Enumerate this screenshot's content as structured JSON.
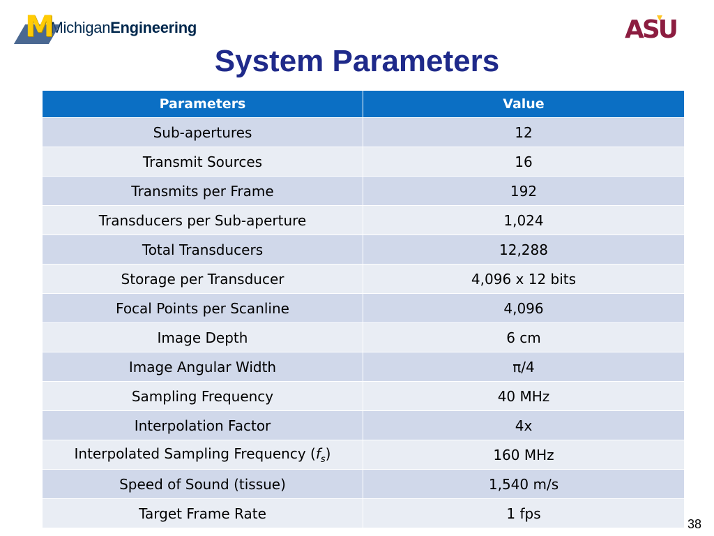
{
  "header": {
    "michigan_logo_text_regular": "Michigan",
    "michigan_logo_text_bold": "Engineering",
    "asu_logo_text": "ASU"
  },
  "slide": {
    "title": "System Parameters",
    "page_number": "38"
  },
  "table": {
    "headers": [
      "Parameters",
      "Value"
    ],
    "rows": [
      {
        "param": "Sub-apertures",
        "value": "12"
      },
      {
        "param": "Transmit Sources",
        "value": "16"
      },
      {
        "param": "Transmits per Frame",
        "value": "192"
      },
      {
        "param": "Transducers per Sub-aperture",
        "value": "1,024"
      },
      {
        "param": "Total Transducers",
        "value": "12,288"
      },
      {
        "param": "Storage per Transducer",
        "value": "4,096 x 12 bits"
      },
      {
        "param": "Focal Points per Scanline",
        "value": "4,096"
      },
      {
        "param": "Image Depth",
        "value": "6 cm"
      },
      {
        "param": "Image Angular Width",
        "value": "π/4"
      },
      {
        "param": "Sampling Frequency",
        "value": "40 MHz"
      },
      {
        "param": "Interpolation Factor",
        "value": "4x"
      },
      {
        "param": "Interpolated Sampling Frequency (",
        "param_italic": "f",
        "param_sub": "s",
        "param_end": ")",
        "value": "160 MHz"
      },
      {
        "param": "Speed of Sound (tissue)",
        "value": "1,540 m/s"
      },
      {
        "param": "Target Frame Rate",
        "value": "1 fps"
      }
    ]
  },
  "colors": {
    "header_bg": "#0b6fc4",
    "row_odd": "#d0d8ea",
    "row_even": "#e9edf4",
    "title": "#1f2a8a",
    "michigan_maize": "#ffcb05",
    "michigan_blue": "#00274c",
    "asu_maroon": "#8c1d40",
    "asu_gold": "#ffc627"
  }
}
